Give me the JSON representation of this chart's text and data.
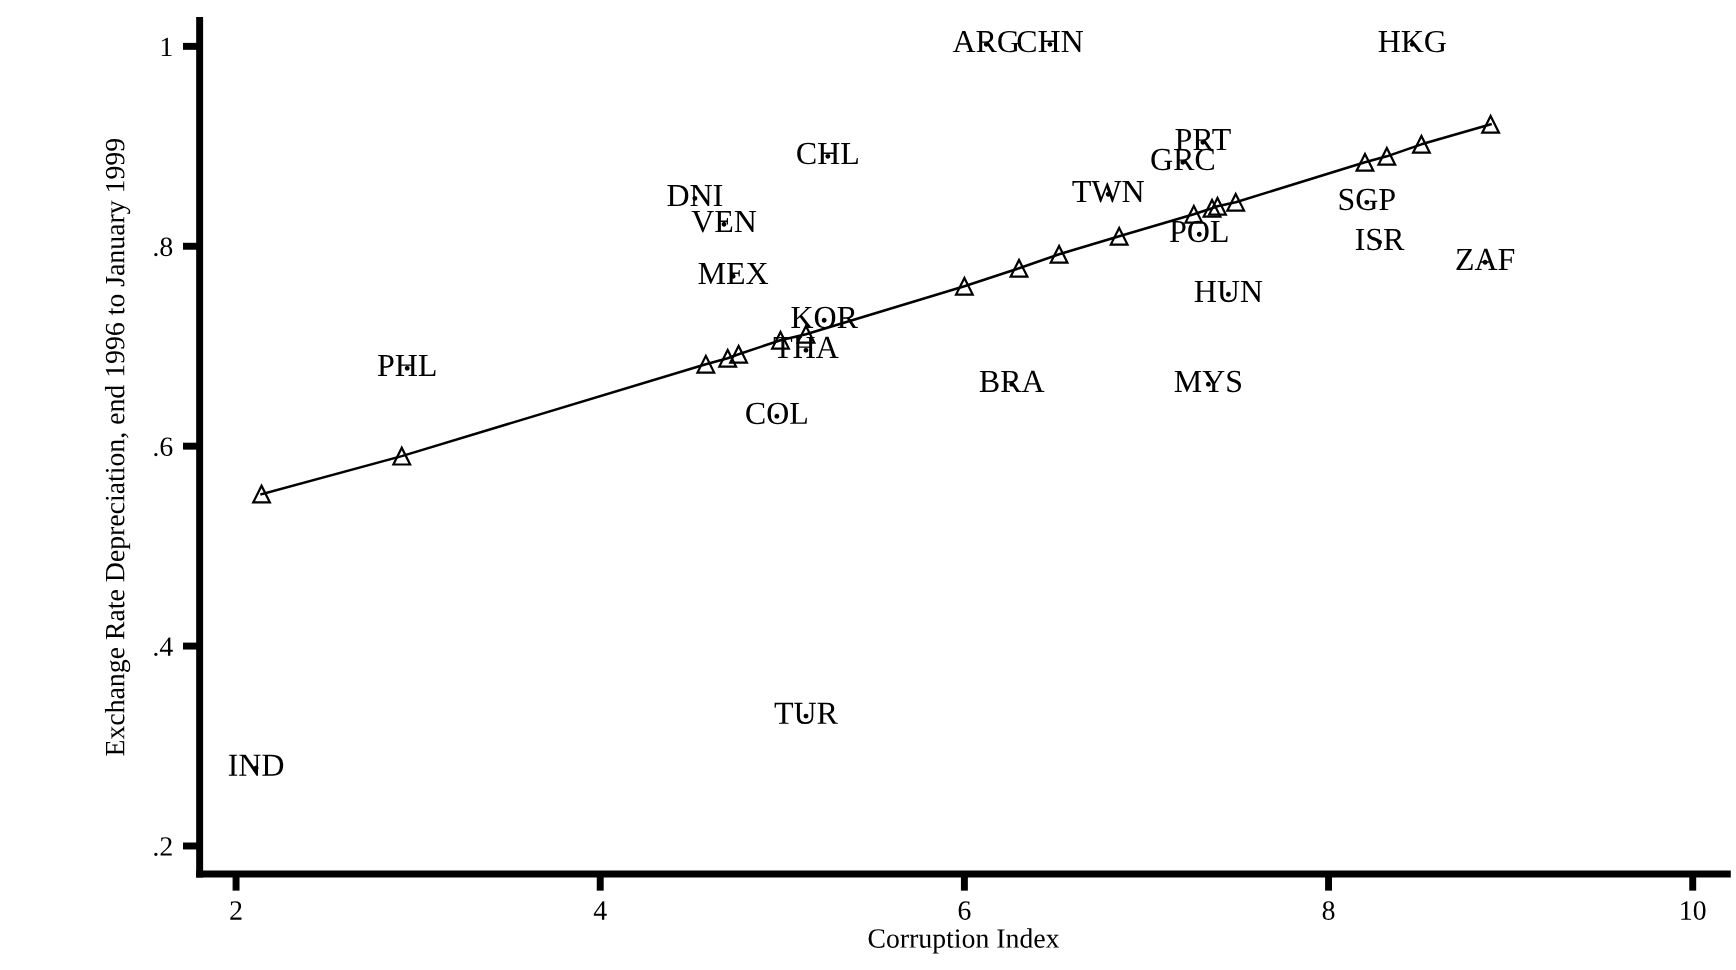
{
  "chart_data": {
    "type": "scatter",
    "xlabel": "Corruption Index",
    "ylabel": "Exchange Rate Depreciation, end 1996 to January 1999",
    "xlim": [
      1.8,
      10.19
    ],
    "ylim": [
      0.172,
      1.026
    ],
    "xticks": [
      2,
      4,
      6,
      8,
      10
    ],
    "yticks": [
      {
        "value": 0.2,
        "label": ".2"
      },
      {
        "value": 0.4,
        "label": ".4"
      },
      {
        "value": 0.6,
        "label": ".6"
      },
      {
        "value": 0.8,
        "label": ".8"
      },
      {
        "value": 1,
        "label": "1"
      }
    ],
    "grid": false,
    "legend": false,
    "marker": "triangle",
    "line_style": "solid",
    "series": [
      {
        "marker": "none",
        "color": "#000000",
        "x": [
          6.12,
          6.47,
          8.46,
          5.25,
          4.52,
          4.68,
          4.73,
          5.23,
          5.13,
          4.97,
          2.94,
          7.31,
          7.2,
          6.79,
          7.29,
          8.21,
          8.28,
          8.86,
          7.45,
          6.26,
          7.34,
          5.13,
          2.11
        ],
        "values": [
          1.002,
          1.002,
          1.002,
          0.89,
          0.848,
          0.822,
          0.77,
          0.726,
          0.696,
          0.63,
          0.678,
          0.904,
          0.884,
          0.852,
          0.812,
          0.844,
          0.804,
          0.784,
          0.752,
          0.662,
          0.662,
          0.33,
          0.278
        ],
        "value_labels": [
          "ARG",
          "CHN",
          "HKG",
          "CHL",
          "DNI",
          "VEN",
          "MEX",
          "KOR",
          "THA",
          "COL",
          "PHL",
          "PRT",
          "GRC",
          "TWN",
          "POL",
          "SGP",
          "ISR",
          "ZAF",
          "HUN",
          "BRA",
          "MYS",
          "TUR",
          "IND"
        ]
      },
      {
        "type": "line",
        "color": "#000000",
        "x": [
          2.14,
          2.91,
          4.58,
          4.7,
          4.76,
          4.99,
          5.13,
          6.0,
          6.3,
          6.52,
          6.85,
          7.26,
          7.36,
          7.39,
          7.49,
          8.2,
          8.32,
          8.51,
          8.89
        ],
        "values": [
          0.552,
          0.59,
          0.682,
          0.688,
          0.692,
          0.706,
          0.712,
          0.76,
          0.778,
          0.792,
          0.81,
          0.832,
          0.838,
          0.84,
          0.844,
          0.884,
          0.89,
          0.902,
          0.922
        ]
      }
    ]
  }
}
